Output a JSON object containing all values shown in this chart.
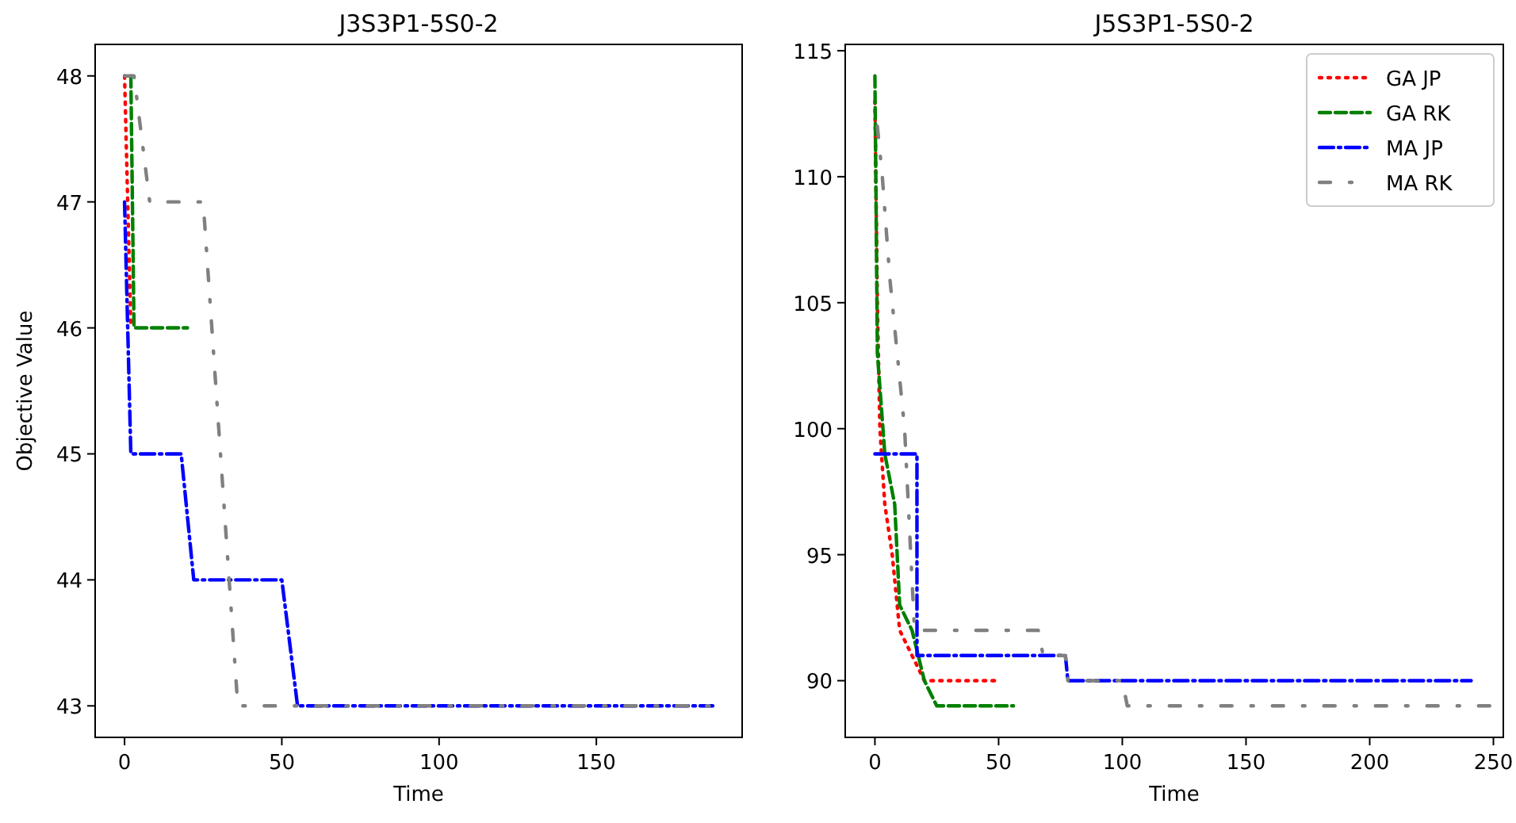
{
  "chart_data": [
    {
      "type": "line",
      "title": "J3S3P1-5S0-2",
      "xlabel": "Time",
      "ylabel": "Objective Value",
      "xlim": [
        -9.35,
        196.35
      ],
      "ylim": [
        42.75,
        48.25
      ],
      "xticks": [
        0,
        50,
        100,
        150
      ],
      "yticks": [
        43,
        44,
        45,
        46,
        47,
        48
      ],
      "grid": false,
      "legend": false,
      "series": [
        {
          "color": "#ff0000",
          "line_style": "dotted",
          "x": [
            0,
            1,
            2
          ],
          "values": [
            48,
            47,
            46
          ]
        },
        {
          "color": "#008000",
          "line_style": "dashed",
          "x": [
            2,
            3,
            20
          ],
          "values": [
            48,
            46,
            46
          ]
        },
        {
          "color": "#0000ff",
          "line_style": "dashdot",
          "x": [
            0,
            2,
            18,
            22,
            50,
            55,
            187
          ],
          "values": [
            47,
            45,
            45,
            44,
            44,
            43,
            43
          ]
        },
        {
          "color": "#808080",
          "line_style": "loose-dashdot",
          "x": [
            0,
            3,
            8,
            25,
            36,
            187
          ],
          "values": [
            48,
            48,
            47,
            47,
            43,
            43
          ]
        }
      ]
    },
    {
      "type": "line",
      "title": "J5S3P1-5S0-2",
      "xlabel": "Time",
      "xlim": [
        -12,
        254
      ],
      "ylim": [
        87.75,
        115.25
      ],
      "xticks": [
        0,
        50,
        100,
        150,
        200,
        250
      ],
      "yticks": [
        90,
        95,
        100,
        105,
        110,
        115
      ],
      "grid": false,
      "legend": "top right",
      "series": [
        {
          "name": "GA JP",
          "color": "#ff0000",
          "line_style": "dotted",
          "x": [
            0,
            1,
            2,
            4,
            7,
            10,
            15,
            20,
            49
          ],
          "values": [
            113,
            105,
            100,
            97,
            95,
            92,
            91,
            90,
            90
          ]
        },
        {
          "name": "GA RK",
          "color": "#008000",
          "line_style": "dashed",
          "x": [
            0,
            1,
            4,
            8,
            10,
            15,
            20,
            25,
            56
          ],
          "values": [
            114,
            103,
            99,
            97,
            93,
            92,
            90,
            89,
            89
          ]
        },
        {
          "name": "MA JP",
          "color": "#0000ff",
          "line_style": "dashdot",
          "x": [
            0,
            17,
            17,
            77,
            78,
            241
          ],
          "values": [
            99,
            99,
            91,
            91,
            90,
            90
          ]
        },
        {
          "name": "MA RK",
          "color": "#808080",
          "line_style": "loose-dashdot",
          "x": [
            1,
            3,
            6,
            12,
            16,
            66,
            68,
            77,
            78,
            100,
            102,
            250
          ],
          "values": [
            112,
            110,
            106,
            100,
            92,
            92,
            91,
            91,
            90,
            90,
            89,
            89
          ]
        }
      ]
    }
  ]
}
